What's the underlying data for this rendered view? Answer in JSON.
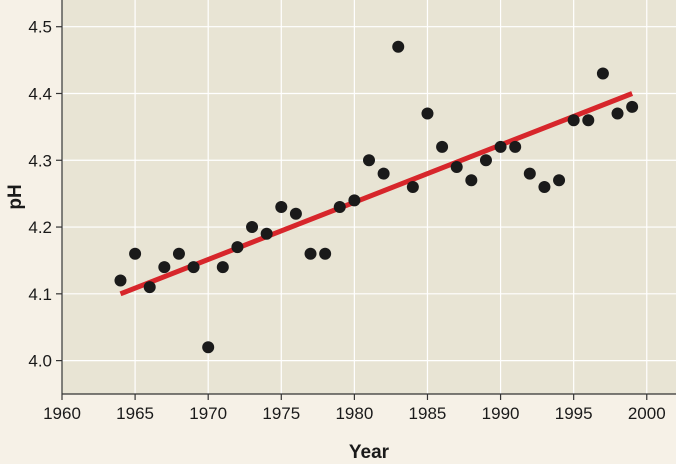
{
  "chart_data": {
    "type": "scatter",
    "title": "",
    "xlabel": "Year",
    "ylabel": "pH",
    "xlim": [
      1960,
      2002
    ],
    "ylim": [
      3.95,
      4.54
    ],
    "x_ticks": [
      1960,
      1965,
      1970,
      1975,
      1980,
      1985,
      1990,
      1995,
      2000
    ],
    "y_ticks": [
      4.0,
      4.1,
      4.2,
      4.3,
      4.4,
      4.5
    ],
    "grid": true,
    "colors": {
      "plot_background": "#e8e4d4",
      "page_background": "#f6f1e7",
      "grid": "#ffffff",
      "points": "#1a1a1a",
      "trend_line": "#d7262b"
    },
    "series": [
      {
        "type": "scatter",
        "points": [
          [
            1964,
            4.12
          ],
          [
            1965,
            4.16
          ],
          [
            1966,
            4.11
          ],
          [
            1967,
            4.14
          ],
          [
            1968,
            4.16
          ],
          [
            1969,
            4.14
          ],
          [
            1970,
            4.02
          ],
          [
            1971,
            4.14
          ],
          [
            1972,
            4.17
          ],
          [
            1973,
            4.2
          ],
          [
            1974,
            4.19
          ],
          [
            1975,
            4.23
          ],
          [
            1976,
            4.22
          ],
          [
            1977,
            4.16
          ],
          [
            1978,
            4.16
          ],
          [
            1979,
            4.23
          ],
          [
            1980,
            4.24
          ],
          [
            1981,
            4.3
          ],
          [
            1982,
            4.28
          ],
          [
            1983,
            4.47
          ],
          [
            1984,
            4.26
          ],
          [
            1985,
            4.37
          ],
          [
            1986,
            4.32
          ],
          [
            1987,
            4.29
          ],
          [
            1988,
            4.27
          ],
          [
            1989,
            4.3
          ],
          [
            1990,
            4.32
          ],
          [
            1991,
            4.32
          ],
          [
            1992,
            4.28
          ],
          [
            1993,
            4.26
          ],
          [
            1994,
            4.27
          ],
          [
            1995,
            4.36
          ],
          [
            1996,
            4.36
          ],
          [
            1997,
            4.43
          ],
          [
            1998,
            4.37
          ],
          [
            1999,
            4.38
          ]
        ]
      },
      {
        "type": "line",
        "points": [
          [
            1964,
            4.1
          ],
          [
            1999,
            4.4
          ]
        ]
      }
    ]
  }
}
